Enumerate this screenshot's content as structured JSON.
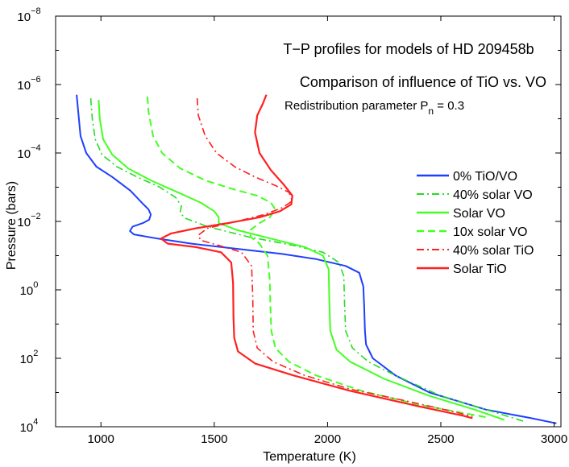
{
  "chart_data": {
    "type": "line",
    "title_lines": [
      "T−P profiles for models of HD 209458b",
      "Comparison of influence of TiO vs. VO"
    ],
    "param_text": {
      "prefix": "Redistribution parameter P",
      "sub": "n",
      "suffix": " = 0.3"
    },
    "xlabel": "Temperature (K)",
    "ylabel": "Pressure (bars)",
    "xlim": [
      800,
      3030
    ],
    "ylim_log10": [
      -8,
      4
    ],
    "y_inverted": true,
    "xticks": [
      1000,
      1500,
      2000,
      2500,
      3000
    ],
    "x_tick_labels": [
      "1000",
      "1500",
      "2000",
      "2500",
      "3000"
    ],
    "yticks_log10": [
      -8,
      -6,
      -4,
      -2,
      0,
      2,
      4
    ],
    "y_tick_labels": [
      {
        "base": "10",
        "exp": "−8"
      },
      {
        "base": "10",
        "exp": "−6"
      },
      {
        "base": "10",
        "exp": "−4"
      },
      {
        "base": "10",
        "exp": "−2"
      },
      {
        "base": "10",
        "exp": "0"
      },
      {
        "base": "10",
        "exp": "2"
      },
      {
        "base": "10",
        "exp": "4"
      }
    ],
    "legend_position": "right",
    "series": [
      {
        "name": "0% TiO/VO",
        "color": "#1f3fff",
        "dash": "solid",
        "width": 2,
        "points": [
          [
            893,
            -5.7
          ],
          [
            900,
            -5.2
          ],
          [
            910,
            -4.5
          ],
          [
            935,
            -4.0
          ],
          [
            980,
            -3.6
          ],
          [
            1050,
            -3.3
          ],
          [
            1130,
            -2.9
          ],
          [
            1180,
            -2.55
          ],
          [
            1210,
            -2.35
          ],
          [
            1220,
            -2.2
          ],
          [
            1213,
            -2.05
          ],
          [
            1185,
            -1.95
          ],
          [
            1140,
            -1.85
          ],
          [
            1128,
            -1.72
          ],
          [
            1145,
            -1.62
          ],
          [
            1250,
            -1.5
          ],
          [
            1400,
            -1.35
          ],
          [
            1600,
            -1.2
          ],
          [
            1800,
            -1.05
          ],
          [
            1950,
            -0.9
          ],
          [
            2080,
            -0.7
          ],
          [
            2140,
            -0.5
          ],
          [
            2158,
            -0.1
          ],
          [
            2162,
            0.5
          ],
          [
            2165,
            1.2
          ],
          [
            2170,
            1.6
          ],
          [
            2200,
            2.0
          ],
          [
            2300,
            2.5
          ],
          [
            2450,
            3.0
          ],
          [
            2700,
            3.5
          ],
          [
            2900,
            3.75
          ],
          [
            3010,
            3.9
          ]
        ]
      },
      {
        "name": "40% solar VO",
        "color": "#22dd22",
        "dash": "dashdot",
        "width": 1.6,
        "points": [
          [
            955,
            -5.6
          ],
          [
            962,
            -5.0
          ],
          [
            975,
            -4.4
          ],
          [
            1005,
            -3.95
          ],
          [
            1070,
            -3.6
          ],
          [
            1160,
            -3.3
          ],
          [
            1260,
            -3.0
          ],
          [
            1330,
            -2.7
          ],
          [
            1355,
            -2.45
          ],
          [
            1350,
            -2.25
          ],
          [
            1370,
            -2.1
          ],
          [
            1470,
            -1.85
          ],
          [
            1650,
            -1.55
          ],
          [
            1850,
            -1.3
          ],
          [
            1980,
            -1.1
          ],
          [
            2050,
            -0.8
          ],
          [
            2072,
            -0.4
          ],
          [
            2075,
            0.4
          ],
          [
            2080,
            1.2
          ],
          [
            2110,
            1.7
          ],
          [
            2180,
            2.1
          ],
          [
            2300,
            2.5
          ],
          [
            2500,
            3.1
          ],
          [
            2700,
            3.5
          ],
          [
            2870,
            3.85
          ]
        ]
      },
      {
        "name": "Solar VO",
        "color": "#44ff22",
        "dash": "solid",
        "width": 2,
        "points": [
          [
            990,
            -5.55
          ],
          [
            995,
            -5.0
          ],
          [
            1010,
            -4.4
          ],
          [
            1050,
            -3.95
          ],
          [
            1120,
            -3.55
          ],
          [
            1220,
            -3.2
          ],
          [
            1340,
            -2.85
          ],
          [
            1440,
            -2.55
          ],
          [
            1500,
            -2.3
          ],
          [
            1520,
            -2.12
          ],
          [
            1520,
            -1.95
          ],
          [
            1600,
            -1.75
          ],
          [
            1750,
            -1.5
          ],
          [
            1900,
            -1.25
          ],
          [
            1980,
            -1.0
          ],
          [
            2005,
            -0.6
          ],
          [
            2008,
            0.3
          ],
          [
            2012,
            1.2
          ],
          [
            2040,
            1.75
          ],
          [
            2100,
            2.1
          ],
          [
            2250,
            2.6
          ],
          [
            2450,
            3.1
          ],
          [
            2650,
            3.5
          ],
          [
            2780,
            3.8
          ]
        ]
      },
      {
        "name": "10x solar VO",
        "color": "#44ff22",
        "dash": "dashed",
        "width": 2,
        "points": [
          [
            1205,
            -5.65
          ],
          [
            1210,
            -5.2
          ],
          [
            1230,
            -4.5
          ],
          [
            1270,
            -4.0
          ],
          [
            1350,
            -3.55
          ],
          [
            1460,
            -3.2
          ],
          [
            1580,
            -2.95
          ],
          [
            1690,
            -2.75
          ],
          [
            1750,
            -2.55
          ],
          [
            1770,
            -2.35
          ],
          [
            1745,
            -2.12
          ],
          [
            1700,
            -1.95
          ],
          [
            1660,
            -1.75
          ],
          [
            1660,
            -1.55
          ],
          [
            1700,
            -1.35
          ],
          [
            1735,
            -1.0
          ],
          [
            1745,
            -0.3
          ],
          [
            1748,
            0.5
          ],
          [
            1752,
            1.2
          ],
          [
            1770,
            1.7
          ],
          [
            1830,
            2.1
          ],
          [
            1950,
            2.5
          ],
          [
            2150,
            2.95
          ],
          [
            2400,
            3.35
          ],
          [
            2600,
            3.6
          ],
          [
            2700,
            3.72
          ]
        ]
      },
      {
        "name": "40% solar TiO",
        "color": "#ff2020",
        "dash": "dashdot",
        "width": 1.6,
        "points": [
          [
            1425,
            -5.6
          ],
          [
            1430,
            -5.1
          ],
          [
            1460,
            -4.5
          ],
          [
            1510,
            -4.0
          ],
          [
            1590,
            -3.6
          ],
          [
            1680,
            -3.3
          ],
          [
            1770,
            -3.05
          ],
          [
            1830,
            -2.85
          ],
          [
            1845,
            -2.6
          ],
          [
            1800,
            -2.4
          ],
          [
            1720,
            -2.2
          ],
          [
            1600,
            -2.0
          ],
          [
            1470,
            -1.8
          ],
          [
            1430,
            -1.6
          ],
          [
            1440,
            -1.45
          ],
          [
            1520,
            -1.3
          ],
          [
            1620,
            -1.1
          ],
          [
            1665,
            -0.7
          ],
          [
            1670,
            0.2
          ],
          [
            1672,
            1.2
          ],
          [
            1690,
            1.7
          ],
          [
            1760,
            2.1
          ],
          [
            1900,
            2.5
          ],
          [
            2100,
            2.9
          ],
          [
            2350,
            3.25
          ],
          [
            2550,
            3.55
          ],
          [
            2640,
            3.7
          ]
        ]
      },
      {
        "name": "Solar TiO",
        "color": "#ff2020",
        "dash": "solid",
        "width": 2.2,
        "points": [
          [
            1730,
            -5.7
          ],
          [
            1715,
            -5.45
          ],
          [
            1690,
            -5.1
          ],
          [
            1680,
            -4.6
          ],
          [
            1700,
            -4.0
          ],
          [
            1750,
            -3.5
          ],
          [
            1810,
            -3.05
          ],
          [
            1845,
            -2.75
          ],
          [
            1840,
            -2.5
          ],
          [
            1790,
            -2.3
          ],
          [
            1700,
            -2.12
          ],
          [
            1560,
            -1.95
          ],
          [
            1420,
            -1.8
          ],
          [
            1310,
            -1.65
          ],
          [
            1265,
            -1.5
          ],
          [
            1295,
            -1.35
          ],
          [
            1420,
            -1.25
          ],
          [
            1530,
            -1.1
          ],
          [
            1575,
            -0.8
          ],
          [
            1583,
            -0.2
          ],
          [
            1585,
            0.8
          ],
          [
            1588,
            1.4
          ],
          [
            1605,
            1.8
          ],
          [
            1680,
            2.15
          ],
          [
            1850,
            2.5
          ],
          [
            2100,
            2.95
          ],
          [
            2400,
            3.4
          ],
          [
            2600,
            3.68
          ],
          [
            2640,
            3.75
          ]
        ]
      }
    ]
  }
}
